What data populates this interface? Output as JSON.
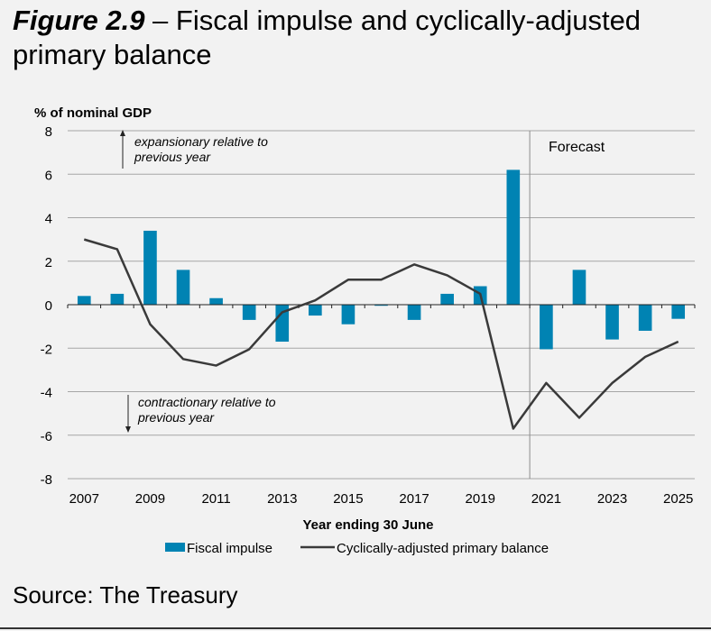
{
  "title_prefix": "Figure 2.9",
  "title_rest": " – Fiscal impulse and cyclically-adjusted primary balance",
  "source": "Source: The Treasury",
  "chart_data": {
    "type": "bar+line",
    "ylabel": "% of nominal GDP",
    "xlabel": "Year ending 30 June",
    "ylim": [
      -8,
      8
    ],
    "yticks": [
      8,
      6,
      4,
      2,
      0,
      -2,
      -4,
      -6,
      -8
    ],
    "categories": [
      "2007",
      "2008",
      "2009",
      "2010",
      "2011",
      "2012",
      "2013",
      "2014",
      "2015",
      "2016",
      "2017",
      "2018",
      "2019",
      "2020",
      "2021",
      "2022",
      "2023",
      "2024",
      "2025"
    ],
    "xtick_labels": [
      "2007",
      "2009",
      "2011",
      "2013",
      "2015",
      "2017",
      "2019",
      "2021",
      "2023",
      "2025"
    ],
    "grid": true,
    "legend_position": "bottom",
    "series": [
      {
        "name": "Fiscal impulse",
        "type": "bar",
        "color": "#0083b3",
        "values": [
          0.4,
          0.5,
          3.4,
          1.6,
          0.3,
          -0.7,
          -1.7,
          -0.5,
          -0.9,
          -0.05,
          -0.7,
          0.5,
          0.85,
          6.2,
          -2.05,
          1.6,
          -1.6,
          -1.2,
          -0.65
        ]
      },
      {
        "name": "Cyclically-adjusted primary balance",
        "type": "line",
        "color": "#3a3a3a",
        "values": [
          3.0,
          2.55,
          -0.9,
          -2.5,
          -2.8,
          -2.05,
          -0.35,
          0.2,
          1.15,
          1.15,
          1.85,
          1.35,
          0.5,
          -5.7,
          -3.6,
          -5.2,
          -3.6,
          -2.4,
          -1.7
        ]
      }
    ],
    "annotations": {
      "forecast": "Forecast",
      "expansionary_1": "expansionary relative to",
      "expansionary_2": "previous year",
      "contractionary_1": "contractionary relative to",
      "contractionary_2": "previous year"
    },
    "forecast_start_after": "2020"
  }
}
